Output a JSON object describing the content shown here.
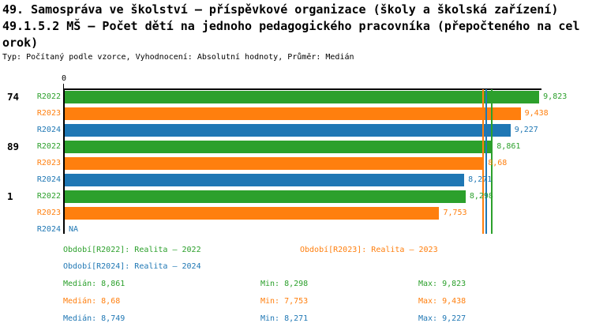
{
  "header": {
    "title_lines": [
      "49. Samospráva ve školství – příspěvkové organizace (školy a školská zařízení)",
      "49.1.5.2 MŠ – Počet dětí na jednoho pedagogického pracovníka (přepočteného na cel",
      "orok)"
    ],
    "meta": "Typ: Počítaný podle vzorce, Vyhodnocení: Absolutní hodnoty, Průměr: Medián"
  },
  "colors": {
    "R2022": "#2ca02c",
    "R2023": "#ff7f0e",
    "R2024": "#1f77b4",
    "axis": "#000000",
    "background": "#ffffff"
  },
  "chart_data": {
    "type": "bar",
    "orientation": "horizontal",
    "value_axis": "x",
    "xlim": [
      0,
      9.9
    ],
    "x_origin_label": "0",
    "grid": false,
    "decimal_separator": ",",
    "categories": [
      "74",
      "89",
      "1"
    ],
    "series_order": [
      "R2022",
      "R2023",
      "R2024"
    ],
    "groups": [
      {
        "category": "74",
        "bars": [
          {
            "series": "R2022",
            "value": 9.823,
            "label": "9,823"
          },
          {
            "series": "R2023",
            "value": 9.438,
            "label": "9,438"
          },
          {
            "series": "R2024",
            "value": 9.227,
            "label": "9,227"
          }
        ]
      },
      {
        "category": "89",
        "bars": [
          {
            "series": "R2022",
            "value": 8.861,
            "label": "8,861"
          },
          {
            "series": "R2023",
            "value": 8.68,
            "label": "8,68"
          },
          {
            "series": "R2024",
            "value": 8.271,
            "label": "8,271"
          }
        ]
      },
      {
        "category": "1",
        "bars": [
          {
            "series": "R2022",
            "value": 8.298,
            "label": "8,298"
          },
          {
            "series": "R2023",
            "value": 7.753,
            "label": "7,753"
          },
          {
            "series": "R2024",
            "value": null,
            "label": "NA"
          }
        ]
      }
    ],
    "median_lines": [
      {
        "series": "R2022",
        "value": 8.861
      },
      {
        "series": "R2023",
        "value": 8.68
      },
      {
        "series": "R2024",
        "value": 8.749
      }
    ]
  },
  "legend": {
    "periods": [
      {
        "series": "R2022",
        "label": "Období[R2022]: Realita – 2022"
      },
      {
        "series": "R2023",
        "label": "Období[R2023]: Realita – 2023"
      },
      {
        "series": "R2024",
        "label": "Období[R2024]: Realita – 2024"
      }
    ],
    "stats": [
      {
        "series": "R2022",
        "median": "Medián: 8,861",
        "min": "Min: 8,298",
        "max": "Max: 9,823"
      },
      {
        "series": "R2023",
        "median": "Medián: 8,68",
        "min": "Min: 7,753",
        "max": "Max: 9,438"
      },
      {
        "series": "R2024",
        "median": "Medián: 8,749",
        "min": "Min: 8,271",
        "max": "Max: 9,227"
      }
    ]
  }
}
